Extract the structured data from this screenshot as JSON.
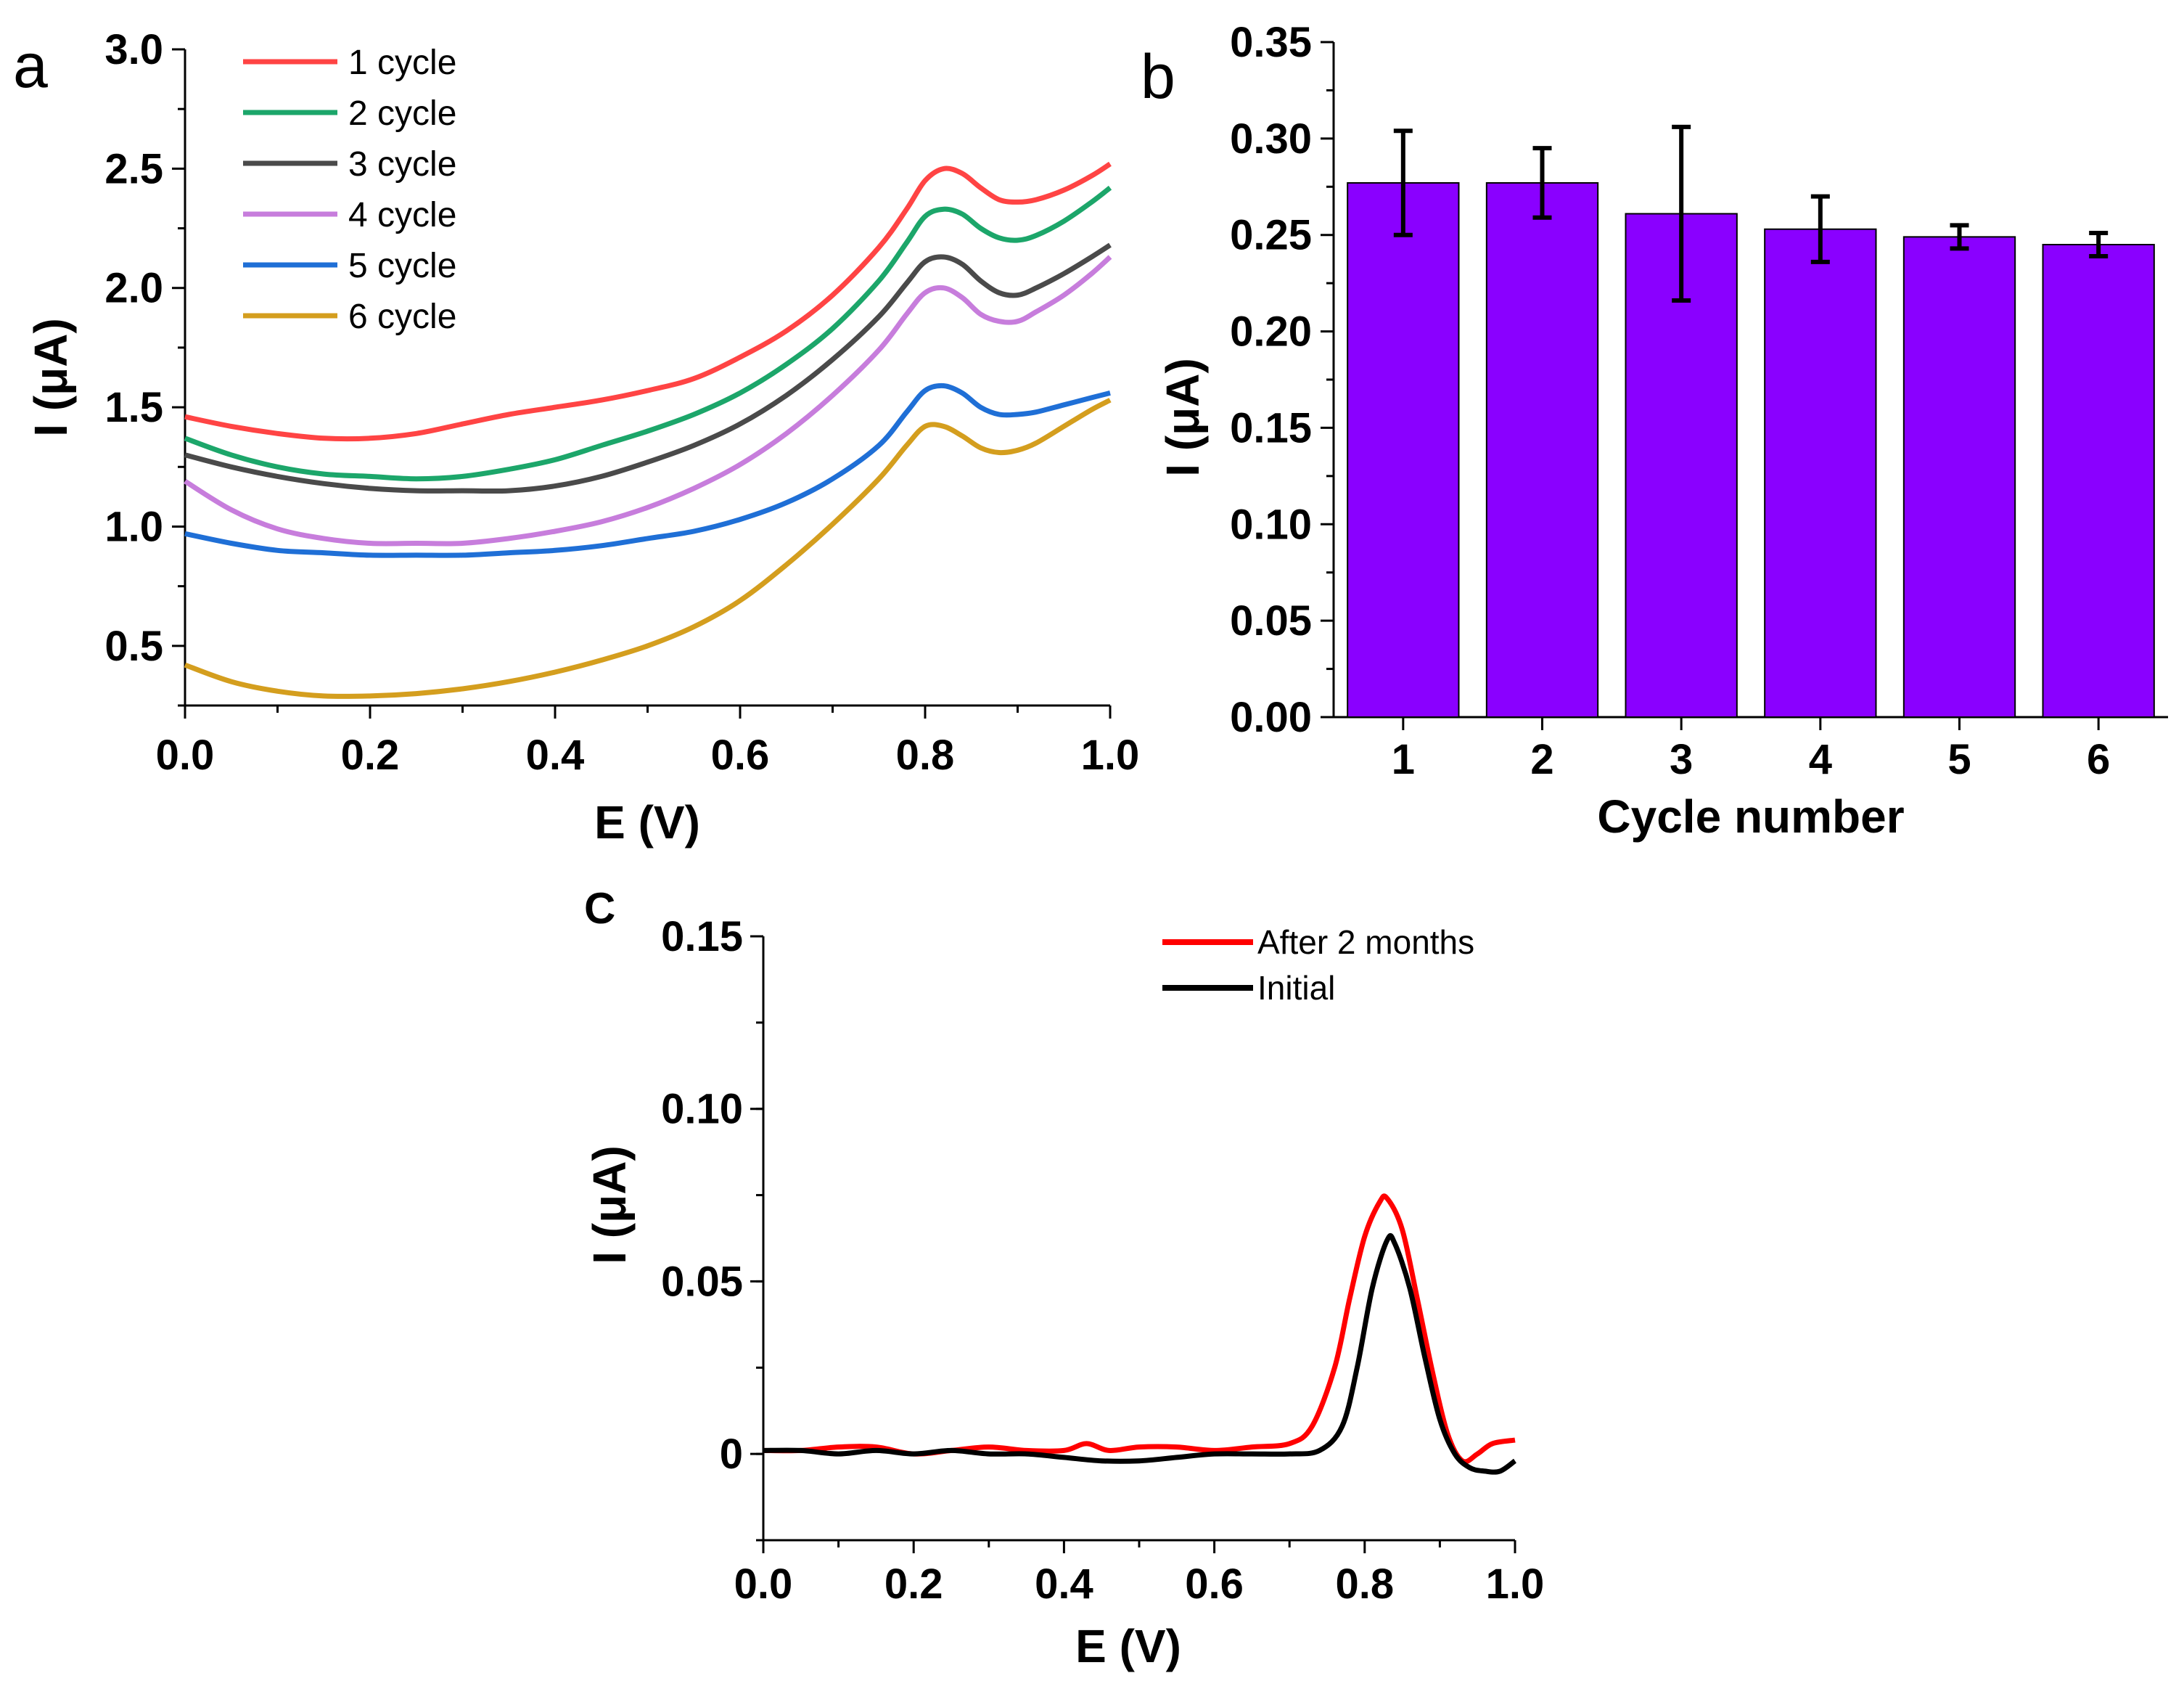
{
  "chart_data": [
    {
      "panel": "a",
      "type": "line",
      "xlabel": "E (V)",
      "ylabel": "I (μA)",
      "xlim": [
        0.0,
        1.0
      ],
      "ylim": [
        0.25,
        3.0
      ],
      "xticks": [
        "0.0",
        "0.2",
        "0.4",
        "0.6",
        "0.8",
        "1.0"
      ],
      "yticks": [
        "0.5",
        "1.0",
        "1.5",
        "2.0",
        "2.5",
        "3.0"
      ],
      "legend_position": "top-left",
      "series": [
        {
          "name": "1 cycle",
          "color": "#ff4444",
          "x": [
            0,
            0.05,
            0.1,
            0.15,
            0.2,
            0.25,
            0.3,
            0.35,
            0.4,
            0.45,
            0.5,
            0.55,
            0.6,
            0.65,
            0.7,
            0.75,
            0.78,
            0.8,
            0.82,
            0.84,
            0.86,
            0.88,
            0.9,
            0.92,
            0.95,
            0.98,
            1.0
          ],
          "y": [
            1.46,
            1.42,
            1.39,
            1.37,
            1.37,
            1.39,
            1.43,
            1.47,
            1.5,
            1.53,
            1.57,
            1.62,
            1.71,
            1.82,
            1.97,
            2.17,
            2.33,
            2.45,
            2.5,
            2.48,
            2.42,
            2.37,
            2.36,
            2.37,
            2.41,
            2.47,
            2.52
          ]
        },
        {
          "name": "2 cycle",
          "color": "#1ca66a",
          "x": [
            0,
            0.05,
            0.1,
            0.15,
            0.2,
            0.25,
            0.3,
            0.35,
            0.4,
            0.45,
            0.5,
            0.55,
            0.6,
            0.65,
            0.7,
            0.75,
            0.78,
            0.8,
            0.82,
            0.84,
            0.86,
            0.88,
            0.9,
            0.92,
            0.95,
            0.98,
            1.0
          ],
          "y": [
            1.37,
            1.3,
            1.25,
            1.22,
            1.21,
            1.2,
            1.21,
            1.24,
            1.28,
            1.34,
            1.4,
            1.47,
            1.56,
            1.68,
            1.83,
            2.03,
            2.19,
            2.3,
            2.33,
            2.31,
            2.25,
            2.21,
            2.2,
            2.22,
            2.28,
            2.36,
            2.42
          ]
        },
        {
          "name": "3 cycle",
          "color": "#4a4a4a",
          "x": [
            0,
            0.05,
            0.1,
            0.15,
            0.2,
            0.25,
            0.3,
            0.35,
            0.4,
            0.45,
            0.5,
            0.55,
            0.6,
            0.65,
            0.7,
            0.75,
            0.78,
            0.8,
            0.82,
            0.84,
            0.86,
            0.88,
            0.9,
            0.92,
            0.95,
            0.98,
            1.0
          ],
          "y": [
            1.3,
            1.25,
            1.21,
            1.18,
            1.16,
            1.15,
            1.15,
            1.15,
            1.17,
            1.21,
            1.27,
            1.34,
            1.43,
            1.55,
            1.7,
            1.88,
            2.02,
            2.11,
            2.13,
            2.1,
            2.03,
            1.98,
            1.97,
            2.0,
            2.06,
            2.13,
            2.18
          ]
        },
        {
          "name": "4 cycle",
          "color": "#c77ddc",
          "x": [
            0,
            0.05,
            0.1,
            0.15,
            0.2,
            0.25,
            0.3,
            0.35,
            0.4,
            0.45,
            0.5,
            0.55,
            0.6,
            0.65,
            0.7,
            0.75,
            0.78,
            0.8,
            0.82,
            0.84,
            0.86,
            0.88,
            0.9,
            0.92,
            0.95,
            0.98,
            1.0
          ],
          "y": [
            1.19,
            1.07,
            0.99,
            0.95,
            0.93,
            0.93,
            0.93,
            0.95,
            0.98,
            1.02,
            1.08,
            1.16,
            1.26,
            1.39,
            1.55,
            1.74,
            1.89,
            1.98,
            2.0,
            1.96,
            1.89,
            1.86,
            1.86,
            1.9,
            1.97,
            2.06,
            2.13
          ]
        },
        {
          "name": "5 cycle",
          "color": "#1f6fd6",
          "x": [
            0,
            0.05,
            0.1,
            0.15,
            0.2,
            0.25,
            0.3,
            0.35,
            0.4,
            0.45,
            0.5,
            0.55,
            0.6,
            0.65,
            0.7,
            0.75,
            0.78,
            0.8,
            0.82,
            0.84,
            0.86,
            0.88,
            0.9,
            0.92,
            0.95,
            0.98,
            1.0
          ],
          "y": [
            0.97,
            0.93,
            0.9,
            0.89,
            0.88,
            0.88,
            0.88,
            0.89,
            0.9,
            0.92,
            0.95,
            0.98,
            1.03,
            1.1,
            1.2,
            1.34,
            1.48,
            1.57,
            1.59,
            1.56,
            1.5,
            1.47,
            1.47,
            1.48,
            1.51,
            1.54,
            1.56
          ]
        },
        {
          "name": "6 cycle",
          "color": "#d49e1e",
          "x": [
            0,
            0.05,
            0.1,
            0.15,
            0.2,
            0.25,
            0.3,
            0.35,
            0.4,
            0.45,
            0.5,
            0.55,
            0.6,
            0.65,
            0.7,
            0.75,
            0.78,
            0.8,
            0.82,
            0.84,
            0.86,
            0.88,
            0.9,
            0.92,
            0.95,
            0.98,
            1.0
          ],
          "y": [
            0.42,
            0.35,
            0.31,
            0.29,
            0.29,
            0.3,
            0.32,
            0.35,
            0.39,
            0.44,
            0.5,
            0.58,
            0.69,
            0.84,
            1.01,
            1.2,
            1.34,
            1.42,
            1.42,
            1.38,
            1.33,
            1.31,
            1.32,
            1.35,
            1.42,
            1.49,
            1.53
          ]
        }
      ]
    },
    {
      "panel": "b",
      "type": "bar",
      "xlabel": "Cycle number",
      "ylabel": "I (μA)",
      "ylim": [
        0.0,
        0.35
      ],
      "yticks": [
        "0.00",
        "0.05",
        "0.10",
        "0.15",
        "0.20",
        "0.25",
        "0.30",
        "0.35"
      ],
      "categories": [
        "1",
        "2",
        "3",
        "4",
        "5",
        "6"
      ],
      "values": [
        0.277,
        0.277,
        0.261,
        0.253,
        0.249,
        0.245
      ],
      "errors": [
        0.027,
        0.018,
        0.045,
        0.017,
        0.006,
        0.006
      ],
      "bar_color": "#8a00ff"
    },
    {
      "panel": "C",
      "type": "line",
      "xlabel": "E (V)",
      "ylabel": "I (μA)",
      "xlim": [
        0.0,
        1.0
      ],
      "ylim": [
        -0.025,
        0.15
      ],
      "xticks": [
        "0.0",
        "0.2",
        "0.4",
        "0.6",
        "0.8",
        "1.0"
      ],
      "yticks": [
        "0",
        "0.05",
        "0.10",
        "0.15"
      ],
      "legend_position": "top-right",
      "series": [
        {
          "name": "After 2 months",
          "color": "#ff0000",
          "x": [
            0,
            0.05,
            0.1,
            0.15,
            0.2,
            0.25,
            0.3,
            0.35,
            0.4,
            0.43,
            0.46,
            0.5,
            0.55,
            0.6,
            0.65,
            0.7,
            0.73,
            0.76,
            0.78,
            0.8,
            0.82,
            0.83,
            0.85,
            0.87,
            0.89,
            0.91,
            0.93,
            0.95,
            0.97,
            1.0
          ],
          "y": [
            0.001,
            0.001,
            0.002,
            0.002,
            0.0,
            0.001,
            0.002,
            0.001,
            0.001,
            0.003,
            0.001,
            0.002,
            0.002,
            0.001,
            0.002,
            0.003,
            0.008,
            0.025,
            0.045,
            0.063,
            0.073,
            0.074,
            0.065,
            0.045,
            0.024,
            0.006,
            -0.002,
            0.0,
            0.003,
            0.004
          ]
        },
        {
          "name": "Initial",
          "color": "#000000",
          "x": [
            0,
            0.05,
            0.1,
            0.15,
            0.2,
            0.25,
            0.3,
            0.35,
            0.4,
            0.45,
            0.5,
            0.55,
            0.6,
            0.65,
            0.7,
            0.74,
            0.77,
            0.79,
            0.81,
            0.83,
            0.84,
            0.86,
            0.88,
            0.9,
            0.92,
            0.94,
            0.96,
            0.98,
            1.0
          ],
          "y": [
            0.001,
            0.001,
            0.0,
            0.001,
            0.0,
            0.001,
            0.0,
            0.0,
            -0.001,
            -0.002,
            -0.002,
            -0.001,
            0.0,
            0.0,
            0.0,
            0.001,
            0.008,
            0.025,
            0.048,
            0.062,
            0.061,
            0.048,
            0.028,
            0.01,
            0.0,
            -0.004,
            -0.005,
            -0.005,
            -0.002
          ]
        }
      ]
    }
  ]
}
